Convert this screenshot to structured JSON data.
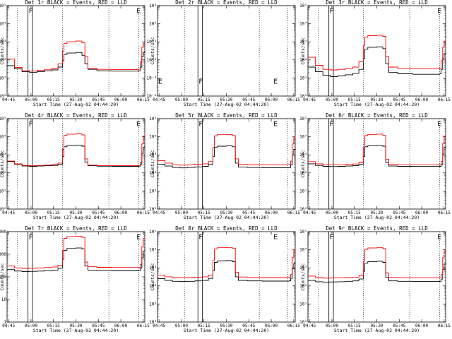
{
  "chart_data": [
    {
      "type": "line",
      "title": "Det 1r BLACK = Events, RED = LLD",
      "xlabel": "Start Time (27-Aug-02 04:44:20)",
      "ylabel": "Counts/sec",
      "yscale": "log",
      "ylim_exp": [
        0,
        5
      ],
      "ytick_labels": [
        "10⁰",
        "10¹",
        "10²",
        "10³",
        "10⁴",
        "10⁵"
      ],
      "xtick_labels": [
        "04:45",
        "05:00",
        "05:15",
        "05:30",
        "05:45",
        "06:00",
        "06:15"
      ],
      "x": [
        0,
        5,
        10,
        15,
        20,
        25,
        30,
        34,
        37,
        38,
        40,
        46,
        50,
        52,
        54,
        60,
        70,
        80,
        88,
        89,
        90,
        91,
        92
      ],
      "series": [
        {
          "name": "Events",
          "color": "#000000",
          "values": [
            48,
            32,
            22,
            20,
            22,
            25,
            28,
            40,
            90,
            200,
            240,
            260,
            180,
            60,
            30,
            25,
            24,
            24,
            25,
            40,
            150,
            250,
            320
          ]
        },
        {
          "name": "LLD",
          "color": "#ff0000",
          "values": [
            110,
            38,
            25,
            24,
            27,
            30,
            35,
            60,
            300,
            800,
            1000,
            1100,
            900,
            150,
            35,
            30,
            29,
            29,
            31,
            80,
            500,
            800,
            900
          ]
        }
      ],
      "markers": {
        "vlines_solid": [
          14,
          17
        ],
        "vlines_dotted": [
          7,
          37,
          68,
          88
        ],
        "letters": [
          {
            "text": "F",
            "x": 14,
            "y_exp": 4.9
          },
          {
            "text": "E",
            "x": 86,
            "y_exp": 4.9
          }
        ]
      }
    },
    {
      "type": "line",
      "title": "Det 2r BLACK = Events, RED = LLD",
      "xlabel": "Start Time (27-Aug-02 04:44:20)",
      "ylabel": "Counts/sec",
      "yscale": "log",
      "ylim_exp": [
        -4,
        1
      ],
      "ytick_labels": [
        "10⁻⁴",
        "10⁻³",
        "10⁻²",
        "10⁻¹",
        "10⁰",
        "10¹"
      ],
      "xtick_labels": [
        "04:45",
        "05:00",
        "05:15",
        "05:30",
        "05:45",
        "06:00",
        "06:15"
      ],
      "x": [],
      "series": [
        {
          "name": "Events",
          "color": "#000000",
          "values": []
        },
        {
          "name": "LLD",
          "color": "#ff0000",
          "values": []
        }
      ],
      "markers": {
        "vlines_solid": [
          27,
          30
        ],
        "vlines_dotted": [
          18,
          68,
          87
        ],
        "letters": [
          {
            "text": "E",
            "x": 0,
            "y_exp": -3.0
          },
          {
            "text": "F",
            "x": 27,
            "y_exp": -3.0
          },
          {
            "text": "E",
            "x": 77,
            "y_exp": -3.0
          }
        ]
      }
    },
    {
      "type": "line",
      "title": "Det 3r BLACK = Events, RED = LLD",
      "xlabel": "Start Time (27-Aug-02 04:44:20)",
      "ylabel": "Counts/sec",
      "yscale": "log",
      "ylim_exp": [
        0,
        5
      ],
      "ytick_labels": [
        "10⁰",
        "10¹",
        "10²",
        "10³",
        "10⁴",
        "10⁵"
      ],
      "xtick_labels": [
        "04:45",
        "05:00",
        "05:15",
        "05:30",
        "05:45",
        "06:00",
        "06:15"
      ],
      "x": [
        0,
        5,
        10,
        15,
        20,
        25,
        30,
        34,
        37,
        38,
        40,
        46,
        50,
        52,
        54,
        60,
        70,
        80,
        88,
        89,
        90,
        91,
        92
      ],
      "series": [
        {
          "name": "Events",
          "color": "#000000",
          "values": [
            40,
            22,
            14,
            12,
            13,
            15,
            18,
            30,
            120,
            400,
            500,
            520,
            420,
            60,
            20,
            17,
            16,
            16,
            17,
            30,
            120,
            220,
            260
          ]
        },
        {
          "name": "LLD",
          "color": "#ff0000",
          "values": [
            140,
            50,
            30,
            28,
            30,
            34,
            40,
            80,
            600,
            1800,
            2200,
            2300,
            2000,
            150,
            40,
            34,
            33,
            33,
            35,
            90,
            500,
            1100,
            1400
          ]
        }
      ],
      "markers": {
        "vlines_solid": [
          14,
          17
        ],
        "vlines_dotted": [
          7,
          37,
          68,
          88
        ],
        "letters": [
          {
            "text": "F",
            "x": 14,
            "y_exp": 4.9
          },
          {
            "text": "E",
            "x": 86,
            "y_exp": 4.9
          }
        ]
      }
    },
    {
      "type": "line",
      "title": "Det 4r BLACK = Events, RED = LLD",
      "xlabel": "Start Time (27-Aug-02 04:44:20)",
      "ylabel": "Counts/sec",
      "yscale": "log",
      "ylim_exp": [
        0,
        5
      ],
      "ytick_labels": [
        "10⁰",
        "10¹",
        "10²",
        "10³",
        "10⁴",
        "10⁵"
      ],
      "xtick_labels": [
        "04:45",
        "05:00",
        "05:15",
        "05:30",
        "05:45",
        "06:00",
        "06:15"
      ],
      "x": [
        0,
        5,
        10,
        15,
        20,
        25,
        30,
        34,
        37,
        38,
        40,
        46,
        50,
        52,
        54,
        60,
        70,
        80,
        88,
        89,
        90,
        91,
        92
      ],
      "series": [
        {
          "name": "Events",
          "color": "#000000",
          "values": [
            420,
            300,
            240,
            230,
            240,
            250,
            260,
            300,
            800,
            2800,
            3300,
            3400,
            3000,
            400,
            250,
            235,
            230,
            230,
            235,
            300,
            1200,
            2600,
            3000
          ]
        },
        {
          "name": "LLD",
          "color": "#ff0000",
          "values": [
            450,
            320,
            260,
            250,
            260,
            270,
            290,
            350,
            2000,
            12000,
            14000,
            14500,
            12500,
            600,
            270,
            255,
            250,
            250,
            255,
            400,
            4000,
            11000,
            13000
          ]
        }
      ],
      "markers": {
        "vlines_solid": [
          14,
          17
        ],
        "vlines_dotted": [
          7,
          37,
          68,
          88
        ],
        "letters": [
          {
            "text": "F",
            "x": 14,
            "y_exp": 4.9
          },
          {
            "text": "E",
            "x": 86,
            "y_exp": 4.9
          }
        ]
      }
    },
    {
      "type": "line",
      "title": "Det 5r BLACK = Events, RED = LLD",
      "xlabel": "Start Time (27-Aug-02 04:44:20)",
      "ylabel": "Counts/sec",
      "yscale": "log",
      "ylim_exp": [
        0,
        5
      ],
      "ytick_labels": [
        "10⁰",
        "10¹",
        "10²",
        "10³",
        "10⁴",
        "10⁵"
      ],
      "xtick_labels": [
        "04:45",
        "05:00",
        "05:15",
        "05:30",
        "05:45",
        "06:00",
        "06:15"
      ],
      "x": [
        0,
        5,
        10,
        15,
        20,
        25,
        30,
        34,
        37,
        38,
        40,
        46,
        50,
        52,
        54,
        60,
        70,
        80,
        88,
        89,
        90,
        91,
        92
      ],
      "series": [
        {
          "name": "Events",
          "color": "#000000",
          "values": [
            300,
            240,
            200,
            190,
            200,
            215,
            230,
            300,
            800,
            2600,
            3000,
            3100,
            2800,
            350,
            210,
            200,
            195,
            195,
            200,
            280,
            1000,
            2000,
            2300
          ]
        },
        {
          "name": "LLD",
          "color": "#ff0000",
          "values": [
            480,
            350,
            280,
            270,
            280,
            300,
            320,
            420,
            2500,
            11000,
            13000,
            13500,
            11500,
            600,
            300,
            285,
            280,
            280,
            285,
            450,
            4000,
            9000,
            11000
          ]
        }
      ],
      "markers": {
        "vlines_solid": [
          27,
          30
        ],
        "vlines_dotted": [
          18,
          68,
          87
        ],
        "letters": [
          {
            "text": "F",
            "x": 27,
            "y_exp": 4.9
          },
          {
            "text": "E",
            "x": 77,
            "y_exp": 4.9
          }
        ]
      }
    },
    {
      "type": "line",
      "title": "Det 6r BLACK = Events, RED = LLD",
      "xlabel": "Start Time (27-Aug-02 04:44:20)",
      "ylabel": "Counts/sec",
      "yscale": "log",
      "ylim_exp": [
        0,
        5
      ],
      "ytick_labels": [
        "10⁰",
        "10¹",
        "10²",
        "10³",
        "10⁴",
        "10⁵"
      ],
      "xtick_labels": [
        "04:45",
        "05:00",
        "05:15",
        "05:30",
        "05:45",
        "06:00",
        "06:15"
      ],
      "x": [
        0,
        5,
        10,
        15,
        20,
        25,
        30,
        34,
        37,
        38,
        40,
        46,
        50,
        52,
        54,
        60,
        70,
        80,
        88,
        89,
        90,
        91,
        92
      ],
      "series": [
        {
          "name": "Events",
          "color": "#000000",
          "values": [
            320,
            260,
            230,
            225,
            230,
            240,
            250,
            300,
            800,
            2800,
            3200,
            3300,
            3000,
            380,
            240,
            230,
            228,
            228,
            230,
            290,
            1100,
            2600,
            3000
          ]
        },
        {
          "name": "LLD",
          "color": "#ff0000",
          "values": [
            420,
            320,
            280,
            275,
            280,
            290,
            310,
            380,
            2500,
            11500,
            13500,
            14000,
            12000,
            560,
            290,
            280,
            278,
            278,
            282,
            420,
            4200,
            11000,
            13000
          ]
        }
      ],
      "markers": {
        "vlines_solid": [
          14,
          17
        ],
        "vlines_dotted": [
          7,
          37,
          68,
          88
        ],
        "letters": [
          {
            "text": "F",
            "x": 14,
            "y_exp": 4.9
          },
          {
            "text": "E",
            "x": 86,
            "y_exp": 4.9
          }
        ]
      }
    },
    {
      "type": "line",
      "title": "Det 7r BLACK = Events, RED = LLD",
      "xlabel": "Start Time (27-Aug-02 04:44:20)",
      "ylabel": "Counts/sec",
      "yscale": "log",
      "ylim_exp": [
        0,
        4
      ],
      "ytick_labels": [
        "1",
        "10",
        "100",
        "1000",
        "10000"
      ],
      "xtick_labels": [
        "04:45",
        "05:00",
        "05:15",
        "05:30",
        "05:45",
        "06:00",
        "06:15"
      ],
      "x": [
        0,
        5,
        10,
        15,
        20,
        25,
        30,
        34,
        37,
        38,
        40,
        46,
        50,
        52,
        54,
        60,
        70,
        80,
        88,
        89,
        90,
        91,
        92
      ],
      "series": [
        {
          "name": "Events",
          "color": "#000000",
          "values": [
            210,
            180,
            170,
            175,
            180,
            190,
            200,
            240,
            600,
            1500,
            1800,
            1900,
            1700,
            300,
            200,
            190,
            185,
            185,
            190,
            240,
            700,
            1400,
            1700
          ]
        },
        {
          "name": "LLD",
          "color": "#ff0000",
          "values": [
            300,
            250,
            235,
            240,
            250,
            260,
            275,
            330,
            1500,
            5000,
            6000,
            6200,
            5600,
            450,
            280,
            265,
            260,
            260,
            265,
            360,
            2200,
            5000,
            6000
          ]
        }
      ],
      "markers": {
        "vlines_solid": [
          14,
          17
        ],
        "vlines_dotted": [
          7,
          37,
          68,
          88
        ],
        "letters": [
          {
            "text": "F",
            "x": 14,
            "y_exp": 3.9
          },
          {
            "text": "E",
            "x": 86,
            "y_exp": 3.9
          }
        ]
      }
    },
    {
      "type": "line",
      "title": "Det 8r BLACK = Events, RED = LLD",
      "xlabel": "Start Time (27-Aug-02 04:44:20)",
      "ylabel": "Counts/sec",
      "yscale": "log",
      "ylim_exp": [
        0,
        5
      ],
      "ytick_labels": [
        "10⁰",
        "10¹",
        "10²",
        "10³",
        "10⁴",
        "10⁵"
      ],
      "xtick_labels": [
        "04:45",
        "05:00",
        "05:15",
        "05:30",
        "05:45",
        "06:00",
        "06:15"
      ],
      "x": [
        0,
        5,
        10,
        15,
        20,
        25,
        30,
        34,
        37,
        38,
        40,
        46,
        50,
        52,
        54,
        60,
        70,
        80,
        88,
        89,
        90,
        91,
        92
      ],
      "series": [
        {
          "name": "Events",
          "color": "#000000",
          "values": [
            250,
            200,
            180,
            175,
            180,
            190,
            200,
            260,
            700,
            2000,
            2400,
            2500,
            2200,
            320,
            200,
            190,
            185,
            185,
            190,
            260,
            900,
            1700,
            2000
          ]
        },
        {
          "name": "LLD",
          "color": "#ff0000",
          "values": [
            400,
            320,
            290,
            285,
            290,
            300,
            320,
            400,
            2500,
            11000,
            13000,
            13500,
            12000,
            560,
            310,
            295,
            290,
            290,
            295,
            430,
            3800,
            9000,
            11000
          ]
        }
      ],
      "markers": {
        "vlines_solid": [
          27,
          30
        ],
        "vlines_dotted": [
          18,
          68,
          87
        ],
        "letters": [
          {
            "text": "F",
            "x": 27,
            "y_exp": 4.9
          },
          {
            "text": "E",
            "x": 77,
            "y_exp": 4.9
          }
        ]
      }
    },
    {
      "type": "line",
      "title": "Det 9r BLACK = Events, RED = LLD",
      "xlabel": "Start Time (27-Aug-02 04:44:20)",
      "ylabel": "Counts/sec",
      "yscale": "log",
      "ylim_exp": [
        0,
        5
      ],
      "ytick_labels": [
        "10⁰",
        "10¹",
        "10²",
        "10³",
        "10⁴",
        "10⁵"
      ],
      "xtick_labels": [
        "04:45",
        "05:00",
        "05:15",
        "05:30",
        "05:45",
        "06:00",
        "06:15"
      ],
      "x": [
        0,
        5,
        10,
        15,
        20,
        25,
        30,
        34,
        37,
        38,
        40,
        46,
        50,
        52,
        54,
        60,
        70,
        80,
        88,
        89,
        90,
        91,
        92
      ],
      "series": [
        {
          "name": "Events",
          "color": "#000000",
          "values": [
            200,
            170,
            160,
            165,
            170,
            180,
            190,
            240,
            650,
            1800,
            2200,
            2300,
            2000,
            300,
            190,
            180,
            175,
            175,
            180,
            240,
            800,
            1600,
            1900
          ]
        },
        {
          "name": "LLD",
          "color": "#ff0000",
          "values": [
            350,
            290,
            270,
            275,
            280,
            290,
            305,
            380,
            2300,
            10500,
            12500,
            13000,
            11500,
            520,
            300,
            285,
            280,
            280,
            285,
            420,
            3600,
            8500,
            10500
          ]
        }
      ],
      "markers": {
        "vlines_solid": [
          14,
          17
        ],
        "vlines_dotted": [
          7,
          37,
          68,
          88
        ],
        "letters": [
          {
            "text": "F",
            "x": 14,
            "y_exp": 4.9
          },
          {
            "text": "E",
            "x": 86,
            "y_exp": 4.9
          }
        ]
      }
    }
  ]
}
